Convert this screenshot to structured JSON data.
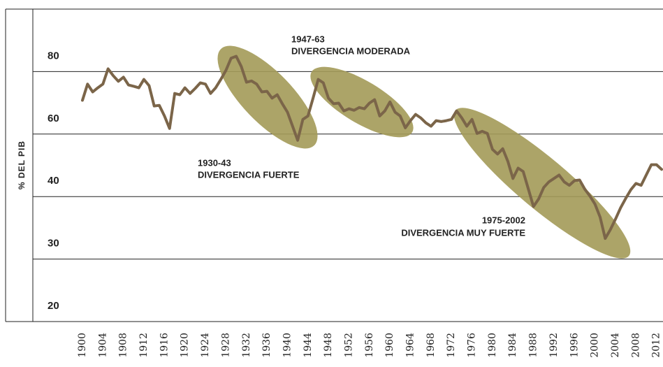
{
  "chart_data": {
    "type": "line",
    "ylabel": "% DEL PIB",
    "x": [
      1900,
      1901,
      1902,
      1903,
      1904,
      1905,
      1906,
      1907,
      1908,
      1909,
      1910,
      1911,
      1912,
      1913,
      1914,
      1915,
      1916,
      1917,
      1918,
      1919,
      1920,
      1921,
      1922,
      1923,
      1924,
      1925,
      1926,
      1927,
      1928,
      1929,
      1930,
      1931,
      1932,
      1933,
      1934,
      1935,
      1936,
      1937,
      1938,
      1939,
      1940,
      1941,
      1942,
      1943,
      1944,
      1945,
      1946,
      1947,
      1948,
      1949,
      1950,
      1951,
      1952,
      1953,
      1954,
      1955,
      1956,
      1957,
      1958,
      1959,
      1960,
      1961,
      1962,
      1963,
      1964,
      1965,
      1966,
      1967,
      1968,
      1969,
      1970,
      1971,
      1972,
      1973,
      1974,
      1975,
      1976,
      1977,
      1978,
      1979,
      1980,
      1981,
      1982,
      1983,
      1984,
      1985,
      1986,
      1987,
      1988,
      1989,
      1990,
      1991,
      1992,
      1993,
      1994,
      1995,
      1996,
      1997,
      1998,
      1999,
      2000,
      2001,
      2002,
      2003,
      2004,
      2005,
      2006,
      2007,
      2008,
      2009,
      2010,
      2011,
      2012,
      2013
    ],
    "values": [
      70.8,
      76,
      73.5,
      74.8,
      76,
      80.9,
      78.7,
      76.9,
      78.2,
      75.7,
      75.3,
      74.8,
      77.5,
      75.5,
      69,
      69.2,
      65.8,
      61.8,
      73,
      72.6,
      74.8,
      73,
      74.6,
      76.4,
      76,
      73,
      74.8,
      77.5,
      80.4,
      84.3,
      84.9,
      81.6,
      76.6,
      77,
      76,
      73.5,
      73.7,
      71.5,
      72.6,
      69.7,
      67,
      62.5,
      58,
      64.7,
      65.8,
      71.5,
      77.5,
      76.4,
      71.5,
      69.7,
      69.9,
      67.4,
      68.1,
      67.6,
      68.5,
      68.1,
      69.9,
      71,
      65.8,
      67.4,
      70.3,
      67,
      65.8,
      62,
      64.3,
      66.3,
      65.2,
      63.6,
      62.5,
      64.3,
      64,
      64.3,
      64.7,
      67.4,
      65.2,
      62.5,
      64.7,
      60.2,
      60.9,
      60.2,
      55.1,
      53.6,
      55.3,
      51.3,
      45.8,
      49.1,
      48,
      42.4,
      38.4,
      39.6,
      42.9,
      44.7,
      45.8,
      46.9,
      44.7,
      43.6,
      45.1,
      45.3,
      42.4,
      40.2,
      38.8,
      36.7,
      33.3,
      34.7,
      36.4,
      38.2,
      39.7,
      42.2,
      44.2,
      43.6,
      46.9,
      50.2,
      50.2,
      48.7
    ],
    "color": "#7b6549",
    "xlim": [
      1900,
      2013
    ],
    "xticks": [
      1900,
      1904,
      1908,
      1912,
      1916,
      1920,
      1924,
      1928,
      1932,
      1936,
      1940,
      1944,
      1948,
      1952,
      1956,
      1960,
      1964,
      1968,
      1972,
      1976,
      1980,
      1984,
      1988,
      1992,
      1996,
      2000,
      2004,
      2008,
      2012
    ],
    "ylim": [
      20,
      100
    ],
    "yticks": [
      20,
      30,
      40,
      60,
      80
    ],
    "grid": true,
    "annotations": [
      {
        "period": "1947-63",
        "text": "DIVERGENCIA MODERADA"
      },
      {
        "period": "1930-43",
        "text": "DIVERGENCIA FUERTE"
      },
      {
        "period": "1975-2002",
        "text": "DIVERGENCIA MUY FUERTE"
      }
    ]
  }
}
